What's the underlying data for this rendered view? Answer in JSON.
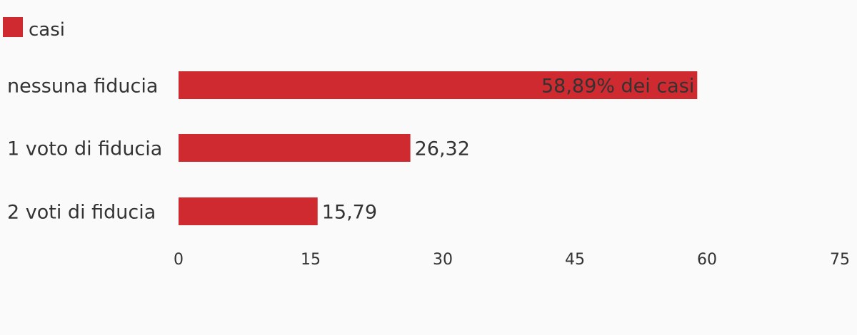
{
  "chart_data": {
    "type": "bar",
    "orientation": "horizontal",
    "categories": [
      "nessuna fiducia",
      "1 voto di fiducia",
      "2 voti di fiducia"
    ],
    "series": [
      {
        "name": "casi",
        "values": [
          58.89,
          26.32,
          15.79
        ],
        "data_labels": [
          "58,89% dei casi",
          "26,32",
          "15,79"
        ]
      }
    ],
    "xlim": [
      0,
      75
    ],
    "xticks": [
      "0",
      "15",
      "30",
      "45",
      "60",
      "75"
    ],
    "legend": "top-left",
    "grid": false,
    "bar_color": "#cf2a30"
  }
}
